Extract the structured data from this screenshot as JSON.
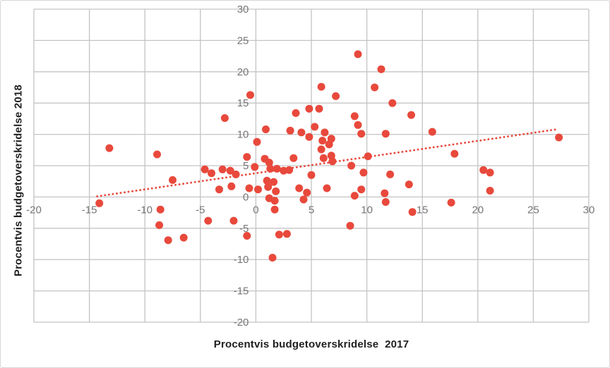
{
  "chart_data": {
    "type": "scatter",
    "title": "",
    "xlabel": "Procentvis budgetoverskridelse  2017",
    "ylabel": "Procentvis budgetoverskridelse 2018",
    "xlim": [
      -20,
      30
    ],
    "ylim": [
      -20,
      30
    ],
    "xticks": [
      -20,
      -15,
      -10,
      -5,
      0,
      5,
      10,
      15,
      20,
      25,
      30
    ],
    "yticks": [
      30,
      25,
      20,
      15,
      10,
      5,
      0,
      -5,
      -10,
      -15,
      -20
    ],
    "grid": true,
    "legend": "none",
    "colors": {
      "point": "#E8493C",
      "grid": "#C4C4C4",
      "tick_label": "#767676",
      "axis_title": "#1F1F1F",
      "figure_border": "#D6D6D6",
      "background": "#FFFFFF"
    },
    "point_radius": 5.5,
    "points": [
      [
        -14.1,
        -1.0
      ],
      [
        -13.2,
        7.8
      ],
      [
        -8.9,
        6.8
      ],
      [
        -8.6,
        -2.0
      ],
      [
        -8.7,
        -4.5
      ],
      [
        -7.9,
        -6.9
      ],
      [
        -6.5,
        -6.5
      ],
      [
        -7.5,
        2.7
      ],
      [
        -4.3,
        -3.8
      ],
      [
        -2.0,
        -3.8
      ],
      [
        -0.8,
        -6.2
      ],
      [
        -4.6,
        4.4
      ],
      [
        -4.0,
        3.8
      ],
      [
        -3.0,
        4.4
      ],
      [
        -2.3,
        4.2
      ],
      [
        -1.8,
        3.6
      ],
      [
        -3.3,
        1.2
      ],
      [
        -2.2,
        1.7
      ],
      [
        -0.6,
        1.4
      ],
      [
        0.2,
        1.2
      ],
      [
        -2.8,
        12.6
      ],
      [
        -0.5,
        16.3
      ],
      [
        -0.8,
        6.4
      ],
      [
        -0.1,
        4.8
      ],
      [
        0.9,
        10.8
      ],
      [
        0.8,
        6.1
      ],
      [
        1.2,
        5.5
      ],
      [
        1.3,
        4.5
      ],
      [
        1.9,
        4.5
      ],
      [
        2.5,
        4.2
      ],
      [
        3.0,
        4.3
      ],
      [
        1.0,
        2.6
      ],
      [
        1.6,
        2.4
      ],
      [
        1.1,
        1.6
      ],
      [
        1.8,
        0.9
      ],
      [
        1.2,
        -0.2
      ],
      [
        1.7,
        -0.6
      ],
      [
        1.7,
        -2.0
      ],
      [
        2.1,
        -6.0
      ],
      [
        2.8,
        -5.9
      ],
      [
        1.5,
        -9.7
      ],
      [
        3.9,
        1.4
      ],
      [
        4.6,
        0.7
      ],
      [
        4.3,
        -0.4
      ],
      [
        3.6,
        13.4
      ],
      [
        4.8,
        14.1
      ],
      [
        5.7,
        14.1
      ],
      [
        7.2,
        16.1
      ],
      [
        5.9,
        17.6
      ],
      [
        3.1,
        10.6
      ],
      [
        4.1,
        10.3
      ],
      [
        5.3,
        11.2
      ],
      [
        4.8,
        9.6
      ],
      [
        6.2,
        10.3
      ],
      [
        6.0,
        9.0
      ],
      [
        6.8,
        9.3
      ],
      [
        6.6,
        8.4
      ],
      [
        5.9,
        7.6
      ],
      [
        0.1,
        8.8
      ],
      [
        6.8,
        6.6
      ],
      [
        6.1,
        6.2
      ],
      [
        6.9,
        5.7
      ],
      [
        3.4,
        6.2
      ],
      [
        5.0,
        3.5
      ],
      [
        8.6,
        5.0
      ],
      [
        9.7,
        3.9
      ],
      [
        6.4,
        1.4
      ],
      [
        8.9,
        0.2
      ],
      [
        9.5,
        1.2
      ],
      [
        10.1,
        6.5
      ],
      [
        9.2,
        22.8
      ],
      [
        11.3,
        20.4
      ],
      [
        10.7,
        17.5
      ],
      [
        12.3,
        15.0
      ],
      [
        14.0,
        13.1
      ],
      [
        8.9,
        12.9
      ],
      [
        9.2,
        11.5
      ],
      [
        9.5,
        10.1
      ],
      [
        11.7,
        10.1
      ],
      [
        15.9,
        10.4
      ],
      [
        17.9,
        6.9
      ],
      [
        27.3,
        9.5
      ],
      [
        12.1,
        3.6
      ],
      [
        13.8,
        2.0
      ],
      [
        11.6,
        0.6
      ],
      [
        11.7,
        -0.8
      ],
      [
        14.1,
        -2.4
      ],
      [
        17.6,
        -0.9
      ],
      [
        20.5,
        4.3
      ],
      [
        21.1,
        3.9
      ],
      [
        21.1,
        1.0
      ],
      [
        8.5,
        -4.6
      ]
    ],
    "trendline": {
      "type": "linear",
      "style": "dotted",
      "color": "#E8493C",
      "start": [
        -14.3,
        0.1
      ],
      "end": [
        27.1,
        10.8
      ]
    }
  }
}
